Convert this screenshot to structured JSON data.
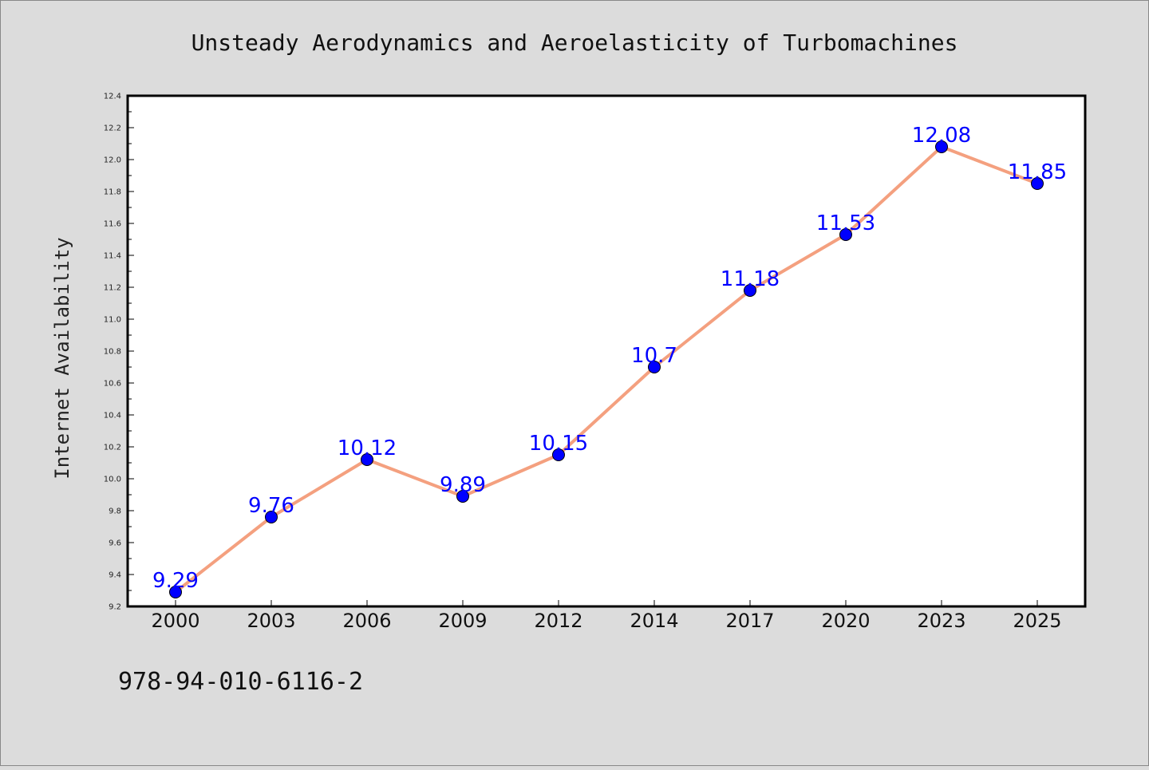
{
  "page": {
    "background": "#dcdcdc",
    "footer_code": "978-94-010-6116-2"
  },
  "chart_data": {
    "type": "line",
    "title": "Unsteady Aerodynamics and Aeroelasticity of Turbomachines",
    "xlabel": "",
    "ylabel": "Internet Availability",
    "categories": [
      "2000",
      "2003",
      "2006",
      "2009",
      "2012",
      "2014",
      "2017",
      "2020",
      "2023",
      "2025"
    ],
    "series": [
      {
        "values": [
          9.29,
          9.76,
          10.12,
          9.89,
          10.15,
          10.7,
          11.18,
          11.53,
          12.08,
          11.85
        ],
        "labels": [
          "9.29",
          "9.76",
          "10.12",
          "9.89",
          "10.15",
          "10.7",
          "11.18",
          "11.53",
          "12.08",
          "11.85"
        ],
        "line_color": "#f4a07f",
        "marker_color": "#0000ff",
        "label_color": "#0000ff"
      }
    ],
    "ylim": [
      9.2,
      12.4
    ],
    "yticks": [
      "9.2",
      "9.4",
      "9.6",
      "9.8",
      "10.0",
      "10.2",
      "10.4",
      "10.6",
      "10.8",
      "11.0",
      "11.2",
      "11.4",
      "11.6",
      "11.8",
      "12.0",
      "12.2",
      "12.4"
    ],
    "grid": false,
    "legend": "none",
    "plot_background": "#ffffff"
  }
}
